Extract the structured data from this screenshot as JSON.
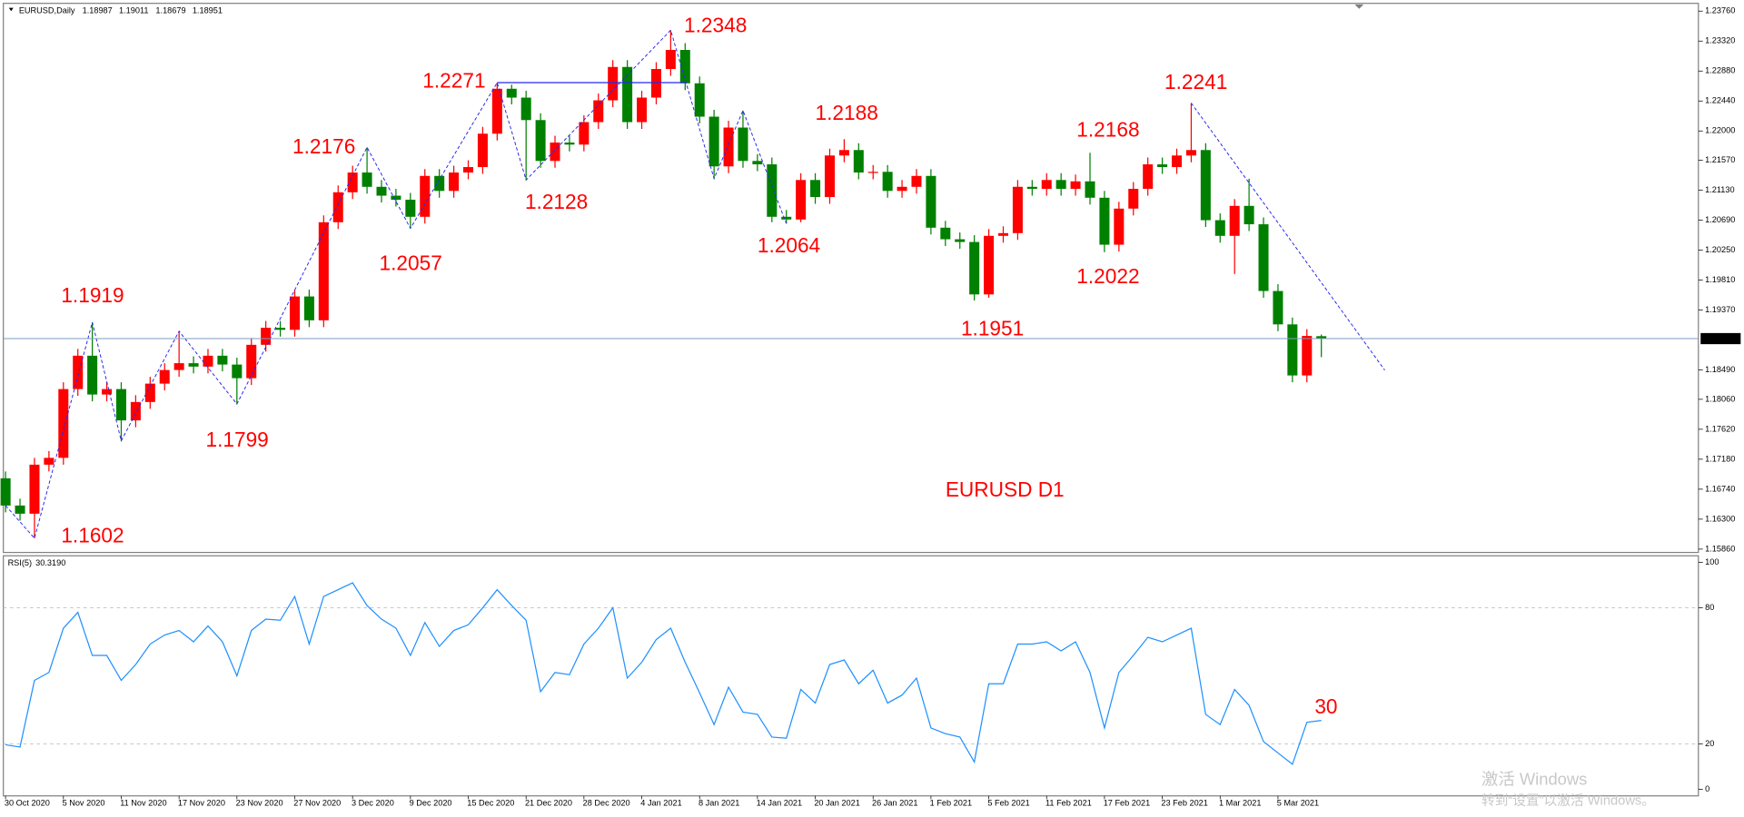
{
  "chart_data": [
    {
      "type": "candlestick",
      "title": "EURUSD,Daily",
      "subtitle": "EURUSD D1",
      "up_color": "#ff0000",
      "down_color": "#008000",
      "price_line_color": "#7d9ec0",
      "drawing_color": "#2828f0",
      "ylim": [
        1.1586,
        1.2376
      ],
      "yticks": [
        {
          "value": 1.2376,
          "label": "1.23760"
        },
        {
          "value": 1.2332,
          "label": "1.23320"
        },
        {
          "value": 1.2288,
          "label": "1.22880"
        },
        {
          "value": 1.2244,
          "label": "1.22440"
        },
        {
          "value": 1.22,
          "label": "1.22000"
        },
        {
          "value": 1.2157,
          "label": "1.21570"
        },
        {
          "value": 1.2113,
          "label": "1.21130"
        },
        {
          "value": 1.2069,
          "label": "1.20690"
        },
        {
          "value": 1.2025,
          "label": "1.20250"
        },
        {
          "value": 1.1981,
          "label": "1.19810"
        },
        {
          "value": 1.1937,
          "label": "1.19370"
        },
        {
          "value": 1.1849,
          "label": "1.18490"
        },
        {
          "value": 1.1806,
          "label": "1.18060"
        },
        {
          "value": 1.1762,
          "label": "1.17620"
        },
        {
          "value": 1.1718,
          "label": "1.17180"
        },
        {
          "value": 1.1674,
          "label": "1.16740"
        },
        {
          "value": 1.163,
          "label": "1.16300"
        },
        {
          "value": 1.1586,
          "label": "1.15860"
        }
      ],
      "categories": [
        "30 Oct 2020",
        null,
        null,
        null,
        "5 Nov 2020",
        null,
        null,
        null,
        "11 Nov 2020",
        null,
        null,
        null,
        "17 Nov 2020",
        null,
        null,
        null,
        "23 Nov 2020",
        null,
        null,
        null,
        "27 Nov 2020",
        null,
        null,
        null,
        "3 Dec 2020",
        null,
        null,
        null,
        "9 Dec 2020",
        null,
        null,
        null,
        "15 Dec 2020",
        null,
        null,
        null,
        "21 Dec 2020",
        null,
        null,
        null,
        "28 Dec 2020",
        null,
        null,
        null,
        "4 Jan 2021",
        null,
        null,
        null,
        "8 Jan 2021",
        null,
        null,
        null,
        "14 Jan 2021",
        null,
        null,
        null,
        "20 Jan 2021",
        null,
        null,
        null,
        "26 Jan 2021",
        null,
        null,
        null,
        "1 Feb 2021",
        null,
        null,
        null,
        "5 Feb 2021",
        null,
        null,
        null,
        "11 Feb 2021",
        null,
        null,
        null,
        "17 Feb 2021",
        null,
        null,
        null,
        "23 Feb 2021",
        null,
        null,
        null,
        "1 Mar 2021",
        null,
        null,
        null,
        "5 Mar 2021",
        null,
        null,
        null
      ],
      "open": [
        1.169,
        1.165,
        1.1638,
        1.171,
        1.172,
        1.1821,
        1.187,
        1.1813,
        1.1821,
        1.1775,
        1.1802,
        1.1829,
        1.1849,
        1.1859,
        1.1854,
        1.187,
        1.1857,
        1.1837,
        1.1886,
        1.1911,
        1.1908,
        1.1957,
        1.1922,
        1.2066,
        1.211,
        1.2139,
        1.2118,
        1.2105,
        1.2099,
        1.2074,
        1.2134,
        1.2112,
        1.2139,
        1.2147,
        1.2196,
        1.2262,
        1.2249,
        1.2216,
        1.2156,
        1.2183,
        1.218,
        1.2213,
        1.2245,
        1.2294,
        1.2213,
        1.2249,
        1.2291,
        1.2319,
        1.227,
        1.2221,
        1.2148,
        1.2205,
        1.2156,
        1.2151,
        1.2074,
        1.207,
        1.2128,
        1.2103,
        1.2164,
        1.2172,
        1.2139,
        1.214,
        1.2112,
        1.2118,
        1.2134,
        1.2058,
        1.2041,
        1.2037,
        1.196,
        1.2046,
        1.205,
        1.2118,
        1.2115,
        1.2128,
        1.2115,
        1.2126,
        1.2102,
        1.2033,
        1.2086,
        1.2115,
        1.2151,
        1.2147,
        1.2164,
        1.2172,
        1.2069,
        1.2046,
        1.209,
        1.2063,
        1.1965,
        1.1916,
        1.1841,
        1.18987
      ],
      "high": [
        1.17,
        1.166,
        1.172,
        1.173,
        1.1831,
        1.188,
        1.1919,
        1.1831,
        1.1831,
        1.1812,
        1.1839,
        1.1859,
        1.1906,
        1.1869,
        1.188,
        1.188,
        1.1867,
        1.1896,
        1.1921,
        1.1921,
        1.1967,
        1.1967,
        1.2076,
        1.212,
        1.2149,
        1.2176,
        1.2128,
        1.2115,
        1.2109,
        1.2144,
        1.2144,
        1.2149,
        1.2157,
        1.2206,
        1.2271,
        1.2268,
        1.2259,
        1.2226,
        1.2193,
        1.2193,
        1.2223,
        1.2255,
        1.2304,
        1.2304,
        1.2259,
        1.2301,
        1.2348,
        1.2329,
        1.228,
        1.2231,
        1.2215,
        1.223,
        1.2166,
        1.2161,
        1.2084,
        1.2138,
        1.2138,
        1.2174,
        1.2188,
        1.2182,
        1.215,
        1.215,
        1.2128,
        1.2144,
        1.2144,
        1.2068,
        1.2051,
        1.2047,
        1.2056,
        1.206,
        1.2128,
        1.2128,
        1.2138,
        1.2138,
        1.2136,
        1.2168,
        1.2112,
        1.2096,
        1.2125,
        1.2161,
        1.2161,
        1.2174,
        1.2241,
        1.2182,
        1.2079,
        1.21,
        1.213,
        1.2073,
        1.1975,
        1.1926,
        1.1909,
        1.19011
      ],
      "low": [
        1.164,
        1.1628,
        1.1602,
        1.17,
        1.171,
        1.1811,
        1.1803,
        1.1803,
        1.1745,
        1.1765,
        1.1792,
        1.1819,
        1.1839,
        1.1844,
        1.1844,
        1.1847,
        1.1799,
        1.1827,
        1.1876,
        1.1898,
        1.1898,
        1.1912,
        1.1912,
        1.2056,
        1.21,
        1.2108,
        1.2095,
        1.2089,
        1.2057,
        1.2064,
        1.2102,
        1.2102,
        1.2129,
        1.2137,
        1.2186,
        1.2239,
        1.2128,
        1.2146,
        1.2146,
        1.217,
        1.217,
        1.2203,
        1.2235,
        1.2203,
        1.2203,
        1.2239,
        1.2281,
        1.226,
        1.2211,
        1.213,
        1.2138,
        1.2146,
        1.2141,
        1.2066,
        1.2064,
        1.2066,
        1.2093,
        1.2093,
        1.2154,
        1.2129,
        1.2129,
        1.2102,
        1.2102,
        1.2108,
        1.2048,
        1.2031,
        1.2027,
        1.1951,
        1.1955,
        1.2036,
        1.204,
        1.2105,
        1.2105,
        1.2105,
        1.2105,
        1.2092,
        1.2022,
        1.2023,
        1.2076,
        1.2105,
        1.2137,
        1.2137,
        1.2154,
        1.2059,
        1.2036,
        1.199,
        1.2053,
        1.1955,
        1.1906,
        1.1831,
        1.1831,
        1.18679
      ],
      "close": [
        1.165,
        1.1638,
        1.171,
        1.172,
        1.1821,
        1.187,
        1.1813,
        1.1821,
        1.1775,
        1.1802,
        1.1829,
        1.1849,
        1.1859,
        1.1854,
        1.187,
        1.1857,
        1.1837,
        1.1886,
        1.1911,
        1.1908,
        1.1957,
        1.1922,
        1.2066,
        1.211,
        1.2139,
        1.2118,
        1.2105,
        1.2099,
        1.2074,
        1.2134,
        1.2112,
        1.2139,
        1.2147,
        1.2196,
        1.2262,
        1.2249,
        1.2216,
        1.2156,
        1.2183,
        1.218,
        1.2213,
        1.2245,
        1.2294,
        1.2213,
        1.2249,
        1.2291,
        1.2319,
        1.227,
        1.2221,
        1.2148,
        1.2205,
        1.2156,
        1.2151,
        1.2074,
        1.207,
        1.2128,
        1.2103,
        1.2164,
        1.2172,
        1.2139,
        1.214,
        1.2112,
        1.2118,
        1.2134,
        1.2058,
        1.2041,
        1.2037,
        1.196,
        1.2046,
        1.205,
        1.2118,
        1.2115,
        1.2128,
        1.2115,
        1.2126,
        1.2102,
        1.2033,
        1.2086,
        1.2115,
        1.2151,
        1.2147,
        1.2164,
        1.2172,
        1.2069,
        1.2046,
        1.209,
        1.2063,
        1.1965,
        1.1916,
        1.1841,
        1.1899,
        1.18951
      ],
      "annotations": [
        "1.1602",
        "1.1919",
        "1.1799",
        "1.2176",
        "1.2057",
        "1.2271",
        "1.2128",
        "1.2348",
        "1.2064",
        "1.2188",
        "1.1951",
        "1.2168",
        "1.2022",
        "1.2241"
      ]
    },
    {
      "type": "line",
      "title": "RSI(5)",
      "title_value": "30.3190",
      "color": "#1e90ff",
      "ylim": [
        0,
        100
      ],
      "yticks": [
        100,
        80,
        20,
        0
      ],
      "grid": true,
      "values": [
        19.6,
        18.6,
        48,
        51.5,
        71,
        78,
        59,
        59,
        48,
        55,
        64,
        68,
        70,
        65,
        72,
        65,
        50,
        70,
        75,
        74.5,
        85,
        64,
        85,
        88,
        91,
        81,
        75,
        71,
        59,
        73.5,
        63,
        70,
        72.5,
        80,
        88,
        81,
        74.5,
        43,
        51.5,
        50.5,
        64,
        71,
        80,
        49,
        56,
        66,
        71,
        56,
        42.5,
        28.5,
        45,
        34,
        33,
        23,
        22.5,
        44,
        38,
        55,
        57,
        46.5,
        52.5,
        38,
        41.5,
        49,
        27,
        24.5,
        23,
        12,
        46.5,
        46.5,
        64,
        64,
        65,
        61,
        65,
        51.5,
        27,
        51.5,
        59,
        67,
        65,
        68,
        71,
        33,
        28.5,
        44,
        37,
        21,
        16,
        11,
        29.5,
        30.319
      ],
      "annotations": [
        "30"
      ]
    }
  ],
  "watermark": {
    "title": "激活 Windows",
    "subtitle": "转到“设置”以激活 Windows。"
  }
}
